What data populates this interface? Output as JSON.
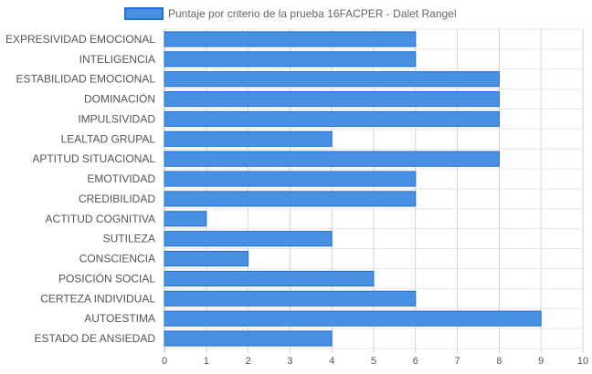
{
  "chart_data": {
    "type": "bar",
    "orientation": "horizontal",
    "title": "",
    "xlabel": "",
    "ylabel": "",
    "xlim": [
      0,
      10
    ],
    "x_ticks": [
      "0",
      "1",
      "2",
      "3",
      "4",
      "5",
      "6",
      "7",
      "8",
      "9",
      "10"
    ],
    "grid": true,
    "legend_position": "top",
    "categories": [
      "EXPRESIVIDAD EMOCIONAL",
      "INTELIGENCIA",
      "ESTABILIDAD EMOCIONAL",
      "DOMINACIÓN",
      "IMPULSIVIDAD",
      "LEALTAD GRUPAL",
      "APTITUD SITUACIONAL",
      "EMOTIVIDAD",
      "CREDIBILIDAD",
      "ACTITUD COGNITIVA",
      "SUTILEZA",
      "CONSCIENCIA",
      "POSICIÓN SOCIAL",
      "CERTEZA INDIVIDUAL",
      "AUTOESTIMA",
      "ESTADO DE ANSIEDAD"
    ],
    "series": [
      {
        "name": "Puntaje por criterio de la prueba 16FACPER - Dalet Rangel",
        "color": "#4a90e2",
        "border_color": "#1e6fd9",
        "values": [
          6,
          6,
          8,
          8,
          8,
          4,
          8,
          6,
          6,
          1,
          4,
          2,
          5,
          6,
          9,
          4
        ]
      }
    ]
  }
}
